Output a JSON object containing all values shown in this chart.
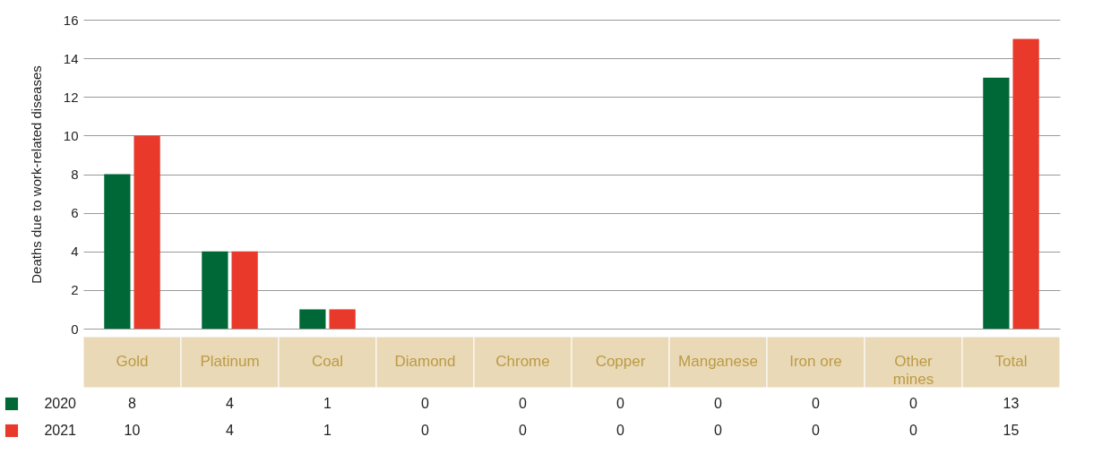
{
  "chart_data": {
    "type": "bar",
    "ylabel": "Deaths due to work-related diseases",
    "categories": [
      "Gold",
      "Platinum",
      "Coal",
      "Diamond",
      "Chrome",
      "Copper",
      "Manganese",
      "Iron ore",
      "Other mines",
      "Total"
    ],
    "series": [
      {
        "name": "2020",
        "color": "#006837",
        "values": [
          8,
          4,
          1,
          0,
          0,
          0,
          0,
          0,
          0,
          13
        ]
      },
      {
        "name": "2021",
        "color": "#e8392a",
        "values": [
          10,
          4,
          1,
          0,
          0,
          0,
          0,
          0,
          0,
          15
        ]
      }
    ],
    "ylim": [
      0,
      16
    ],
    "yticks": [
      0,
      2,
      4,
      6,
      8,
      10,
      12,
      14,
      16
    ],
    "grid": "y",
    "data_labels": true,
    "legend": "bottom left"
  }
}
